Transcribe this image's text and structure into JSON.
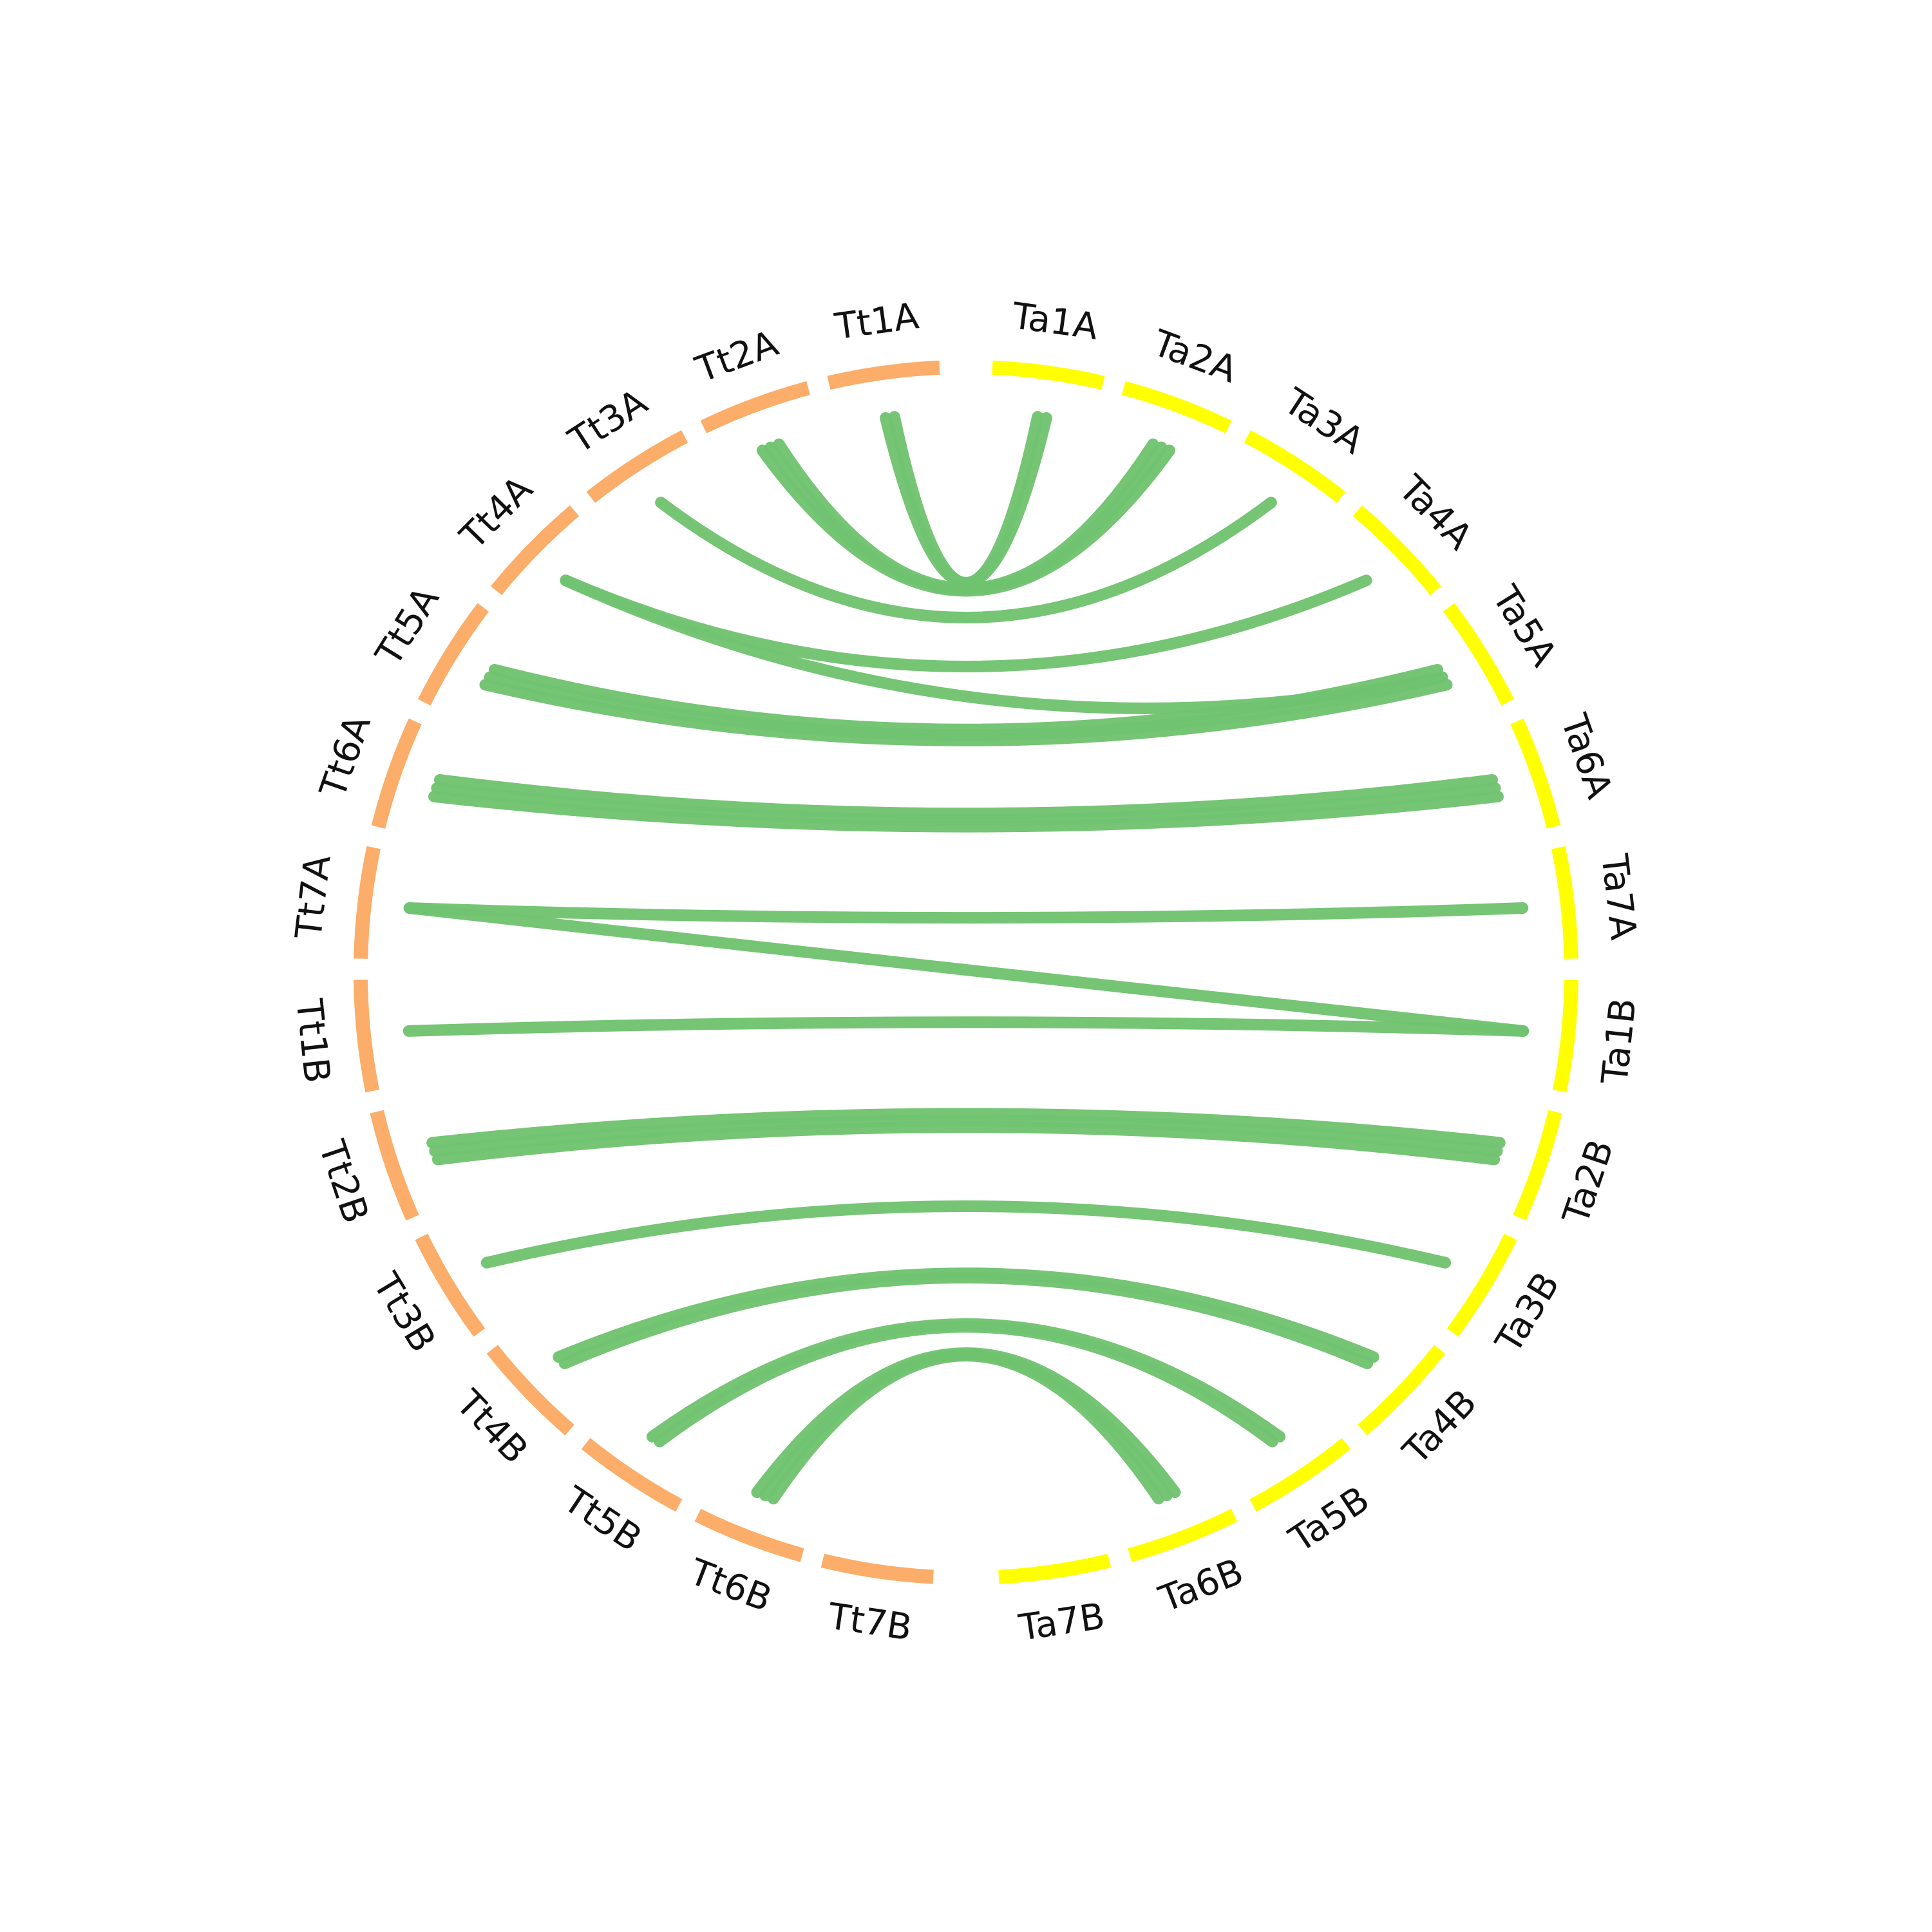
{
  "chart_data": {
    "type": "circos",
    "title": "",
    "colors": {
      "tt_segment": "#fbad69",
      "ta_segment": "#ffff00",
      "link": "#6fc36f",
      "label": "#111111"
    },
    "chromosomes": [
      {
        "id": "Tt1A",
        "label": "Tt1A",
        "group": "tt"
      },
      {
        "id": "Tt2A",
        "label": "Tt2A",
        "group": "tt"
      },
      {
        "id": "Tt3A",
        "label": "Tt3A",
        "group": "tt"
      },
      {
        "id": "Tt4A",
        "label": "Tt4A",
        "group": "tt"
      },
      {
        "id": "Tt5A",
        "label": "Tt5A",
        "group": "tt"
      },
      {
        "id": "Tt6A",
        "label": "Tt6A",
        "group": "tt"
      },
      {
        "id": "Tt7A",
        "label": "Tt7A",
        "group": "tt"
      },
      {
        "id": "Tt1B",
        "label": "Tt1B",
        "group": "tt"
      },
      {
        "id": "Tt2B",
        "label": "Tt2B",
        "group": "tt"
      },
      {
        "id": "Tt3B",
        "label": "Tt3B",
        "group": "tt"
      },
      {
        "id": "Tt4B",
        "label": "Tt4B",
        "group": "tt"
      },
      {
        "id": "Tt5B",
        "label": "Tt5B",
        "group": "tt"
      },
      {
        "id": "Tt6B",
        "label": "Tt6B",
        "group": "tt"
      },
      {
        "id": "Tt7B",
        "label": "Tt7B",
        "group": "tt"
      },
      {
        "id": "Ta1A",
        "label": "Ta1A",
        "group": "ta"
      },
      {
        "id": "Ta2A",
        "label": "Ta2A",
        "group": "ta"
      },
      {
        "id": "Ta3A",
        "label": "Ta3A",
        "group": "ta"
      },
      {
        "id": "Ta4A",
        "label": "Ta4A",
        "group": "ta"
      },
      {
        "id": "Ta5A",
        "label": "Ta5A",
        "group": "ta"
      },
      {
        "id": "Ta6A",
        "label": "Ta6A",
        "group": "ta"
      },
      {
        "id": "Ta7A",
        "label": "Ta7A",
        "group": "ta"
      },
      {
        "id": "Ta1B",
        "label": "Ta1B",
        "group": "ta"
      },
      {
        "id": "Ta2B",
        "label": "Ta2B",
        "group": "ta"
      },
      {
        "id": "Ta3B",
        "label": "Ta3B",
        "group": "ta"
      },
      {
        "id": "Ta4B",
        "label": "Ta4B",
        "group": "ta"
      },
      {
        "id": "Ta5B",
        "label": "Ta5B",
        "group": "ta"
      },
      {
        "id": "Ta6B",
        "label": "Ta6B",
        "group": "ta"
      },
      {
        "id": "Ta7B",
        "label": "Ta7B",
        "group": "ta"
      }
    ],
    "links": [
      {
        "from": "Tt1A",
        "to": "Ta1A",
        "count": 2
      },
      {
        "from": "Tt2A",
        "to": "Ta2A",
        "count": 3
      },
      {
        "from": "Tt3A",
        "to": "Ta3A",
        "count": 1
      },
      {
        "from": "Tt4A",
        "to": "Ta4A",
        "count": 1
      },
      {
        "from": "Tt4A",
        "to": "Ta5A",
        "count": 1
      },
      {
        "from": "Tt5A",
        "to": "Ta5A",
        "count": 3
      },
      {
        "from": "Tt6A",
        "to": "Ta6A",
        "count": 3
      },
      {
        "from": "Tt7A",
        "to": "Ta7A",
        "count": 1
      },
      {
        "from": "Tt7A",
        "to": "Ta1B",
        "count": 1
      },
      {
        "from": "Tt1B",
        "to": "Ta1B",
        "count": 1
      },
      {
        "from": "Tt2B",
        "to": "Ta2B",
        "count": 3
      },
      {
        "from": "Tt3B",
        "to": "Ta3B",
        "count": 1
      },
      {
        "from": "Tt4B",
        "to": "Ta4B",
        "count": 2
      },
      {
        "from": "Tt5B",
        "to": "Ta5B",
        "count": 2
      },
      {
        "from": "Tt6B",
        "to": "Ta6B",
        "count": 3
      }
    ]
  }
}
